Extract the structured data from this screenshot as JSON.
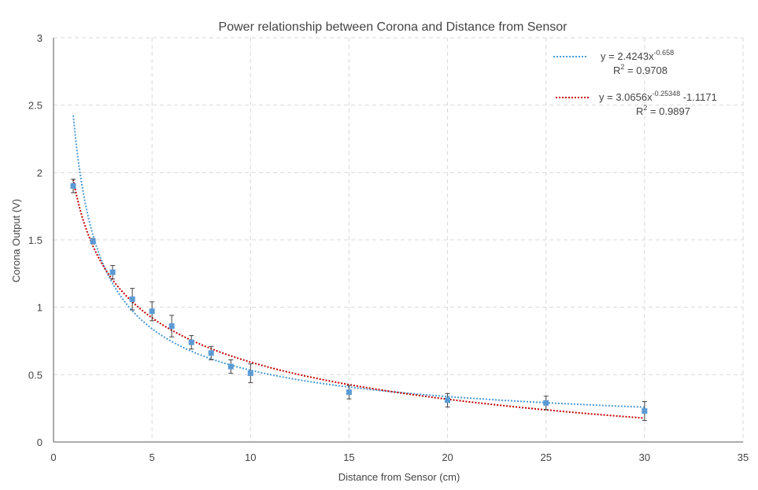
{
  "chart_data": {
    "type": "scatter",
    "title": "Power relationship between Corona and Distance from Sensor",
    "xlabel": "Distance from Sensor (cm)",
    "ylabel": "Corona Output (V)",
    "xlim": [
      0,
      35
    ],
    "ylim": [
      0,
      3
    ],
    "xticks": [
      "0",
      "5",
      "10",
      "15",
      "20",
      "25",
      "30",
      "35"
    ],
    "yticks": [
      "0",
      "0.5",
      "1",
      "1.5",
      "2",
      "2.5",
      "3"
    ],
    "grid": true,
    "legend_position": "top-right",
    "series": [
      {
        "marker_color": "#5b9bd5",
        "x": [
          1,
          2,
          3,
          4,
          5,
          6,
          7,
          8,
          9,
          10,
          15,
          20,
          25,
          30
        ],
        "y": [
          1.9,
          1.49,
          1.26,
          1.06,
          0.97,
          0.86,
          0.74,
          0.66,
          0.56,
          0.51,
          0.37,
          0.31,
          0.29,
          0.23
        ],
        "error": [
          0.05,
          0.02,
          0.05,
          0.08,
          0.07,
          0.08,
          0.05,
          0.05,
          0.05,
          0.07,
          0.05,
          0.05,
          0.05,
          0.07
        ]
      }
    ],
    "trendlines": [
      {
        "color": "#4a9ad4",
        "style": "dotted",
        "a": 2.4243,
        "b": -0.658,
        "c": 0,
        "eq_prefix": "y = 2.4243x",
        "eq_exp": "-0.658",
        "eq_suffix": "",
        "r2_prefix": "R",
        "r2_sup": "2",
        "r2_value": " = 0.9708"
      },
      {
        "color": "#c00000",
        "style": "dotted",
        "a": 3.0656,
        "b": -0.25348,
        "c": -1.1171,
        "eq_prefix": "y = 3.0656x",
        "eq_exp": "-0.25348",
        "eq_suffix": " -1.1171",
        "r2_prefix": "R",
        "r2_sup": "2",
        "r2_value": " = 0.9897"
      }
    ],
    "colors": {
      "grid": "#d9d9d9",
      "axis": "#595959",
      "error_bar": "#404040"
    }
  }
}
